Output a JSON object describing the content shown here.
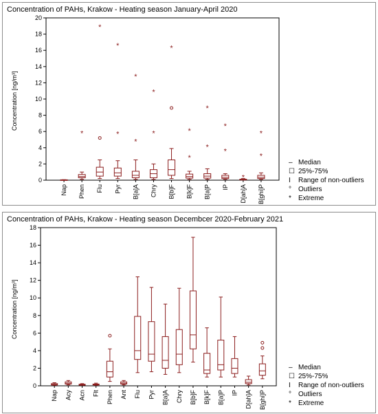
{
  "chart_data": [
    {
      "type": "boxplot",
      "title": "Concentration of PAHs, Krakow - Heating season January-April 2020",
      "ylabel": "Concentration [ng/m³]",
      "ylim": [
        0,
        20
      ],
      "yticks": [
        0,
        2,
        4,
        6,
        8,
        10,
        12,
        14,
        16,
        18,
        20
      ],
      "legend": {
        "position": "right",
        "entries": [
          {
            "symbol": "dash",
            "label": "Median"
          },
          {
            "symbol": "box",
            "label": "25%-75%"
          },
          {
            "symbol": "whisker",
            "label": "Range of non-outliers"
          },
          {
            "symbol": "circle",
            "label": "Outliers"
          },
          {
            "symbol": "star",
            "label": "Extreme"
          }
        ]
      },
      "categories": [
        "Nap",
        "Phen",
        "Flu",
        "Pyr",
        "B[a]A",
        "Chry",
        "B[b]F",
        "B[k]F",
        "B[a]P",
        "IP",
        "D[ah]A",
        "B[ghi]P"
      ],
      "series": [
        {
          "min": 0.02,
          "q1": 0.03,
          "median": 0.04,
          "q3": 0.05,
          "max": 0.06,
          "outliers": [],
          "extremes": []
        },
        {
          "min": 0.1,
          "q1": 0.3,
          "median": 0.45,
          "q3": 0.7,
          "max": 1.0,
          "outliers": [],
          "extremes": [
            5.8
          ]
        },
        {
          "min": 0.2,
          "q1": 0.5,
          "median": 1.0,
          "q3": 1.6,
          "max": 2.5,
          "outliers": [
            5.2
          ],
          "extremes": [
            18.9
          ]
        },
        {
          "min": 0.2,
          "q1": 0.5,
          "median": 0.9,
          "q3": 1.5,
          "max": 2.4,
          "outliers": [],
          "extremes": [
            5.7,
            16.6
          ]
        },
        {
          "min": 0.1,
          "q1": 0.3,
          "median": 0.6,
          "q3": 1.1,
          "max": 2.5,
          "outliers": [],
          "extremes": [
            4.8,
            12.8
          ]
        },
        {
          "min": 0.1,
          "q1": 0.3,
          "median": 0.8,
          "q3": 1.3,
          "max": 2.0,
          "outliers": [],
          "extremes": [
            5.8,
            10.9
          ]
        },
        {
          "min": 0.2,
          "q1": 0.6,
          "median": 1.3,
          "q3": 2.5,
          "max": 3.9,
          "outliers": [
            8.9
          ],
          "extremes": [
            16.3
          ]
        },
        {
          "min": 0.1,
          "q1": 0.25,
          "median": 0.45,
          "q3": 0.75,
          "max": 1.1,
          "outliers": [],
          "extremes": [
            2.8,
            6.1
          ]
        },
        {
          "min": 0.1,
          "q1": 0.25,
          "median": 0.5,
          "q3": 0.8,
          "max": 1.4,
          "outliers": [],
          "extremes": [
            4.1,
            8.9
          ]
        },
        {
          "min": 0.1,
          "q1": 0.2,
          "median": 0.35,
          "q3": 0.6,
          "max": 0.8,
          "outliers": [],
          "extremes": [
            3.6,
            6.7
          ]
        },
        {
          "min": 0.02,
          "q1": 0.05,
          "median": 0.08,
          "q3": 0.12,
          "max": 0.2,
          "outliers": [],
          "extremes": [
            0.4
          ]
        },
        {
          "min": 0.1,
          "q1": 0.2,
          "median": 0.35,
          "q3": 0.6,
          "max": 0.9,
          "outliers": [],
          "extremes": [
            3.0,
            5.8
          ]
        }
      ]
    },
    {
      "type": "boxplot",
      "title": "Concentration of PAHs, Krakow - Heating season Decembcer 2020-February 2021",
      "ylabel": "Concentration [ng/m³]",
      "ylim": [
        0,
        18
      ],
      "yticks": [
        0,
        2,
        4,
        6,
        8,
        10,
        12,
        14,
        16,
        18
      ],
      "legend": {
        "position": "right",
        "entries": [
          {
            "symbol": "dash",
            "label": "Median"
          },
          {
            "symbol": "box",
            "label": "25%-75%"
          },
          {
            "symbol": "whisker",
            "label": "Range of non-outliers"
          },
          {
            "symbol": "circle",
            "label": "Outliers"
          },
          {
            "symbol": "star",
            "label": "Extreme"
          }
        ]
      },
      "categories": [
        "Nap",
        "Acy",
        "Acn",
        "Flt",
        "Phen",
        "Ant",
        "Flu",
        "Pyr",
        "B[a]A",
        "Chry",
        "B[b]F",
        "B[k]F",
        "B[a]P",
        "IP",
        "D[ah]A",
        "B[ghi]P"
      ],
      "series": [
        {
          "min": 0.05,
          "q1": 0.1,
          "median": 0.15,
          "q3": 0.25,
          "max": 0.35,
          "outliers": [],
          "extremes": []
        },
        {
          "min": 0.1,
          "q1": 0.2,
          "median": 0.3,
          "q3": 0.45,
          "max": 0.6,
          "outliers": [],
          "extremes": []
        },
        {
          "min": 0.05,
          "q1": 0.08,
          "median": 0.12,
          "q3": 0.18,
          "max": 0.25,
          "outliers": [],
          "extremes": []
        },
        {
          "min": 0.05,
          "q1": 0.1,
          "median": 0.15,
          "q3": 0.2,
          "max": 0.3,
          "outliers": [],
          "extremes": []
        },
        {
          "min": 0.5,
          "q1": 1.0,
          "median": 1.6,
          "q3": 2.8,
          "max": 4.2,
          "outliers": [
            5.7
          ],
          "extremes": []
        },
        {
          "min": 0.1,
          "q1": 0.2,
          "median": 0.3,
          "q3": 0.45,
          "max": 0.6,
          "outliers": [],
          "extremes": []
        },
        {
          "min": 1.5,
          "q1": 3.0,
          "median": 4.0,
          "q3": 7.9,
          "max": 12.4,
          "outliers": [],
          "extremes": []
        },
        {
          "min": 1.6,
          "q1": 2.8,
          "median": 3.6,
          "q3": 7.3,
          "max": 11.2,
          "outliers": [],
          "extremes": []
        },
        {
          "min": 1.3,
          "q1": 2.0,
          "median": 2.9,
          "q3": 5.6,
          "max": 9.3,
          "outliers": [],
          "extremes": []
        },
        {
          "min": 1.5,
          "q1": 2.4,
          "median": 3.6,
          "q3": 6.4,
          "max": 11.1,
          "outliers": [],
          "extremes": []
        },
        {
          "min": 2.7,
          "q1": 4.2,
          "median": 5.8,
          "q3": 10.8,
          "max": 16.9,
          "outliers": [],
          "extremes": []
        },
        {
          "min": 1.0,
          "q1": 1.4,
          "median": 1.8,
          "q3": 3.7,
          "max": 6.6,
          "outliers": [],
          "extremes": []
        },
        {
          "min": 1.0,
          "q1": 1.8,
          "median": 2.4,
          "q3": 5.2,
          "max": 10.1,
          "outliers": [],
          "extremes": []
        },
        {
          "min": 1.0,
          "q1": 1.4,
          "median": 2.0,
          "q3": 3.1,
          "max": 5.6,
          "outliers": [],
          "extremes": []
        },
        {
          "min": 0.1,
          "q1": 0.25,
          "median": 0.4,
          "q3": 0.7,
          "max": 1.1,
          "outliers": [],
          "extremes": []
        },
        {
          "min": 0.8,
          "q1": 1.2,
          "median": 1.7,
          "q3": 2.5,
          "max": 3.4,
          "outliers": [
            4.3,
            4.9
          ],
          "extremes": []
        }
      ]
    }
  ]
}
